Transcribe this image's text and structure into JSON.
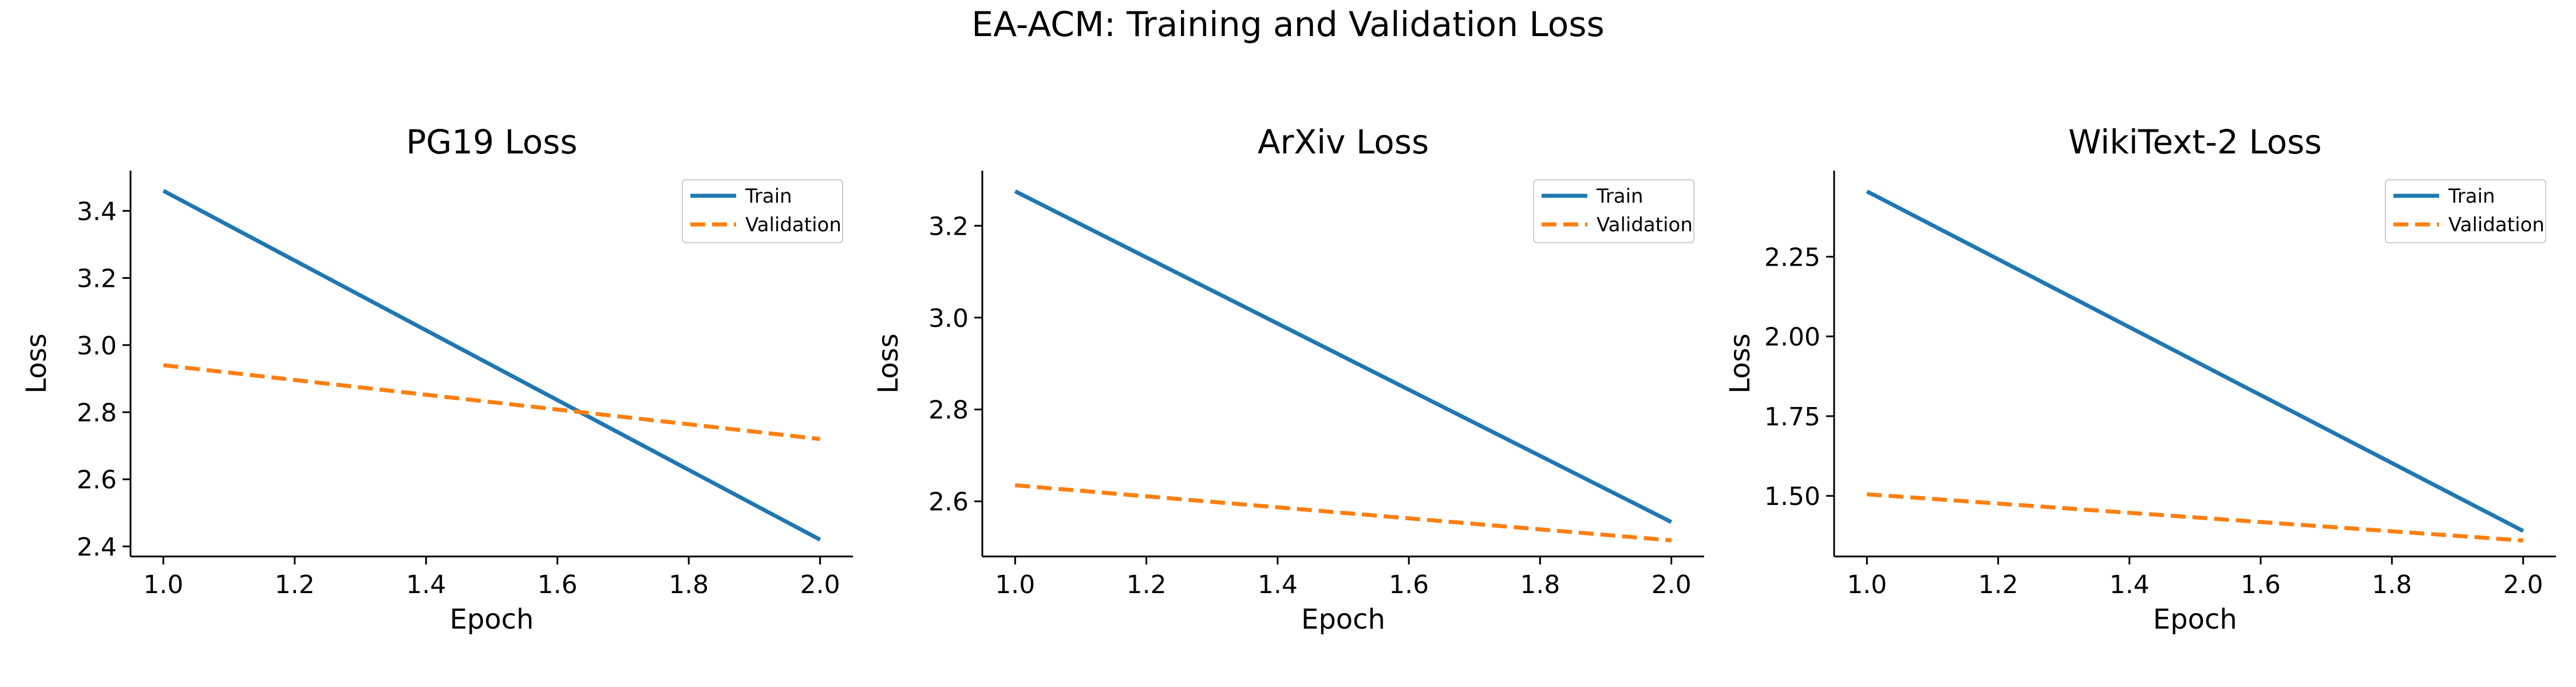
{
  "figure": {
    "title": "EA-ACM: Training and Validation Loss"
  },
  "colors": {
    "train": "#1f77b4",
    "validation": "#ff7f0e",
    "axis": "#000000"
  },
  "chart_data": [
    {
      "type": "line",
      "title": "PG19 Loss",
      "xlabel": "Epoch",
      "ylabel": "Loss",
      "xlim": [
        0.95,
        2.05
      ],
      "ylim": [
        2.37,
        3.52
      ],
      "xticks": [
        "1.0",
        "1.2",
        "1.4",
        "1.6",
        "1.8",
        "2.0"
      ],
      "yticks": [
        "2.4",
        "2.6",
        "2.8",
        "3.0",
        "3.2",
        "3.4"
      ],
      "grid": false,
      "legend_position": "top-right",
      "x": [
        1.0,
        2.0
      ],
      "series": [
        {
          "name": "Train",
          "values": [
            3.46,
            2.42
          ],
          "style": "solid"
        },
        {
          "name": "Validation",
          "values": [
            2.94,
            2.72
          ],
          "style": "dashed"
        }
      ]
    },
    {
      "type": "line",
      "title": "ArXiv Loss",
      "xlabel": "Epoch",
      "ylabel": "Loss",
      "xlim": [
        0.95,
        2.05
      ],
      "ylim": [
        2.48,
        3.32
      ],
      "xticks": [
        "1.0",
        "1.2",
        "1.4",
        "1.6",
        "1.8",
        "2.0"
      ],
      "yticks": [
        "2.6",
        "2.8",
        "3.0",
        "3.2"
      ],
      "grid": false,
      "legend_position": "top-right",
      "x": [
        1.0,
        2.0
      ],
      "series": [
        {
          "name": "Train",
          "values": [
            3.275,
            2.555
          ],
          "style": "solid"
        },
        {
          "name": "Validation",
          "values": [
            2.635,
            2.515
          ],
          "style": "dashed"
        }
      ]
    },
    {
      "type": "line",
      "title": "WikiText-2 Loss",
      "xlabel": "Epoch",
      "ylabel": "Loss",
      "xlim": [
        0.95,
        2.05
      ],
      "ylim": [
        1.31,
        2.52
      ],
      "xticks": [
        "1.0",
        "1.2",
        "1.4",
        "1.6",
        "1.8",
        "2.0"
      ],
      "yticks": [
        "1.50",
        "1.75",
        "2.00",
        "2.25"
      ],
      "grid": false,
      "legend_position": "top-right",
      "x": [
        1.0,
        2.0
      ],
      "series": [
        {
          "name": "Train",
          "values": [
            2.455,
            1.39
          ],
          "style": "solid"
        },
        {
          "name": "Validation",
          "values": [
            1.505,
            1.36
          ],
          "style": "dashed"
        }
      ]
    }
  ]
}
